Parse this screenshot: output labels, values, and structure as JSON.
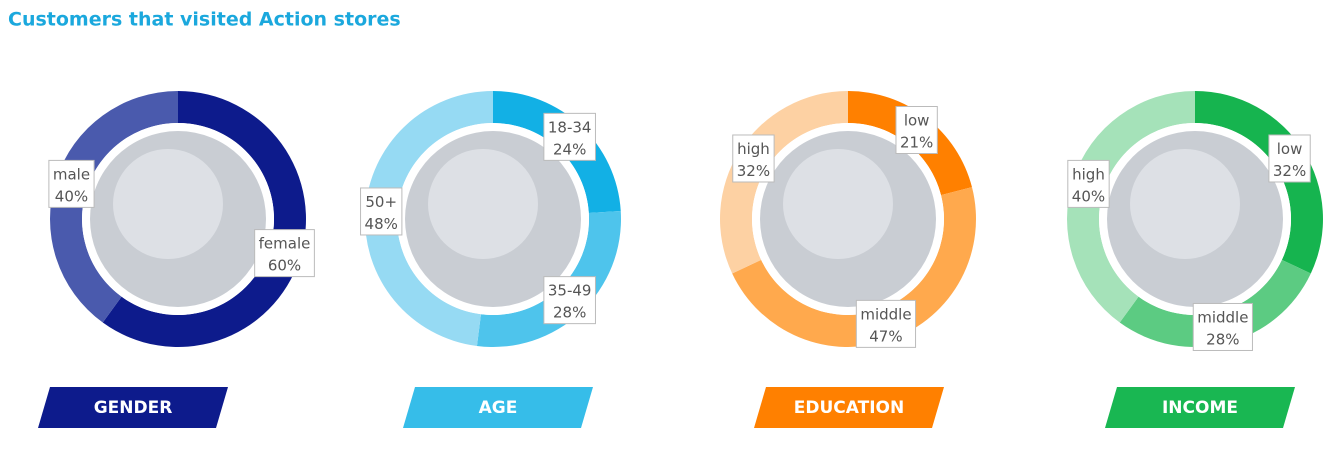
{
  "title": "Customers that visited Action stores",
  "chart_data": [
    {
      "type": "donut",
      "title": "GENDER",
      "color": "#0d1b8c",
      "categories": [
        "female",
        "male"
      ],
      "values": [
        60,
        40
      ],
      "value_labels": [
        "60%",
        "40%"
      ],
      "colors": [
        "#0d1b8c",
        "#4a5aad"
      ]
    },
    {
      "type": "donut",
      "title": "AGE",
      "color": "#36bde9",
      "categories": [
        "18-34",
        "35-49",
        "50+"
      ],
      "values": [
        24,
        28,
        48
      ],
      "value_labels": [
        "24%",
        "28%",
        "48%"
      ],
      "colors": [
        "#12b0e5",
        "#4ec4ec",
        "#96daf3"
      ]
    },
    {
      "type": "donut",
      "title": "EDUCATION",
      "color": "#ff8000",
      "categories": [
        "low",
        "middle",
        "high"
      ],
      "values": [
        21,
        47,
        32
      ],
      "value_labels": [
        "21%",
        "47%",
        "32%"
      ],
      "colors": [
        "#ff8000",
        "#ffa94d",
        "#fdd1a3"
      ]
    },
    {
      "type": "donut",
      "title": "INCOME",
      "color": "#19b752",
      "categories": [
        "low",
        "middle",
        "high"
      ],
      "values": [
        32,
        28,
        40
      ],
      "value_labels": [
        "32%",
        "28%",
        "40%"
      ],
      "colors": [
        "#16b44f",
        "#5ccb82",
        "#a5e2b9"
      ]
    }
  ]
}
